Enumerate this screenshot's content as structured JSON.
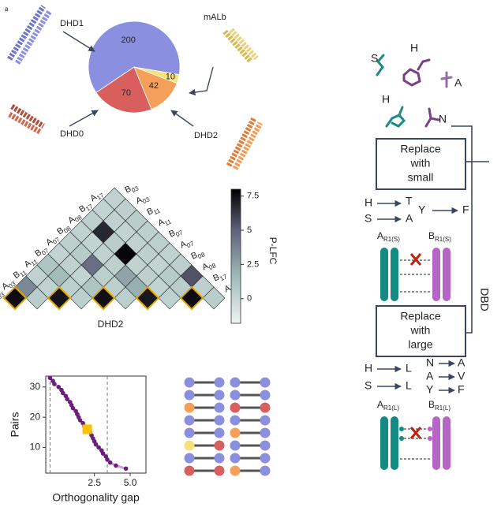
{
  "panel_label": "a",
  "pie": {
    "type": "pie",
    "names": [
      "DHD1",
      "mALb",
      "DHD2",
      "DHD0"
    ],
    "values": [
      200,
      10,
      42,
      70
    ],
    "colors": [
      "#8b8fe0",
      "#f7e27a",
      "#f4a05a",
      "#d95f5f"
    ]
  },
  "heatmap": {
    "type": "heatmap",
    "labels": [
      {
        "base": "B",
        "sub": "03"
      },
      {
        "base": "A",
        "sub": "03"
      },
      {
        "base": "B",
        "sub": "11"
      },
      {
        "base": "A",
        "sub": "11"
      },
      {
        "base": "B",
        "sub": "07"
      },
      {
        "base": "A",
        "sub": "07"
      },
      {
        "base": "B",
        "sub": "08"
      },
      {
        "base": "A",
        "sub": "08"
      },
      {
        "base": "B",
        "sub": "17"
      },
      {
        "base": "A",
        "sub": "17"
      }
    ],
    "rows": [
      [
        7.6,
        0.5,
        7.4,
        0.3,
        7.5,
        0.4,
        7.3,
        0.2,
        7.6,
        0.5
      ],
      [
        3.5,
        0.2,
        0.4,
        1.0,
        0.3,
        2.0,
        0.1,
        0.5,
        0.3
      ],
      [
        0.2,
        1.5,
        0.1,
        0.4,
        2.5,
        0.3,
        0.6,
        5.5
      ],
      [
        1.0,
        0.2,
        4.5,
        0.3,
        0.2,
        0.1,
        0.4
      ],
      [
        0.1,
        0.6,
        0.2,
        7.8,
        0.3,
        0.2
      ],
      [
        0.3,
        0.1,
        0.5,
        0.2,
        0.4
      ],
      [
        0.2,
        6.8,
        0.1,
        0.3
      ],
      [
        0.4,
        0.2,
        0.5
      ],
      [
        0.1,
        0.3
      ],
      [
        0.2
      ]
    ],
    "highlighted_cells": [
      0,
      2,
      4,
      6,
      8
    ],
    "highlight_color": "#e0a800",
    "vlim": [
      -1.8,
      8
    ],
    "ticks": [
      0,
      2.5,
      5,
      7.5
    ],
    "colorbar_label": "P-LFC",
    "xlabel": "DHD2"
  },
  "scatter": {
    "type": "line",
    "x": [
      -0.6,
      -0.4,
      -0.3,
      0,
      0.2,
      0.3,
      0.5,
      0.6,
      0.8,
      0.9,
      1.0,
      1.2,
      1.3,
      1.4,
      1.5,
      1.7,
      1.8,
      2.0,
      2.2,
      2.3,
      2.4,
      2.5,
      2.6,
      2.8,
      3.0,
      3.1,
      3.3,
      3.4,
      3.6,
      4.0,
      4.7
    ],
    "y": [
      33,
      32,
      31,
      30,
      29,
      28,
      27,
      26,
      25,
      24,
      23,
      22,
      21,
      20,
      19,
      18,
      17,
      16,
      15,
      14,
      13,
      12,
      11,
      10,
      9,
      8,
      7,
      6,
      5,
      4,
      3
    ],
    "color": "#6b1f7a",
    "line_color": "#c9a3cf",
    "highlight": {
      "x": 2.0,
      "y": 16,
      "color": "#ffc000"
    },
    "vlines": [
      -0.6,
      3.4
    ],
    "xlim": [
      -0.9,
      6.1
    ],
    "ylim": [
      1.5,
      33.6
    ],
    "xticks": [
      2.5,
      {
        "value": 5,
        "label": "5.0"
      }
    ],
    "yticks": [
      10,
      20,
      30
    ],
    "xlabel": "Orthogonality gap",
    "ylabel": "Pairs"
  },
  "pair_grid": [
    [
      "#8b8fe0",
      "#8b8fe0",
      "#8b8fe0",
      "#8b8fe0"
    ],
    [
      "#8b8fe0",
      "#8b8fe0",
      "#8b8fe0",
      "#8b8fe0"
    ],
    [
      "#f4a05a",
      "#8b8fe0",
      "#d95f5f",
      "#d95f5f"
    ],
    [
      "#8b8fe0",
      "#8b8fe0",
      "#8b8fe0",
      "#8b8fe0"
    ],
    [
      "#8b8fe0",
      "#8b8fe0",
      "#f4a05a",
      "#8b8fe0"
    ],
    [
      "#f7e27a",
      "#d95f5f",
      "#8b8fe0",
      "#8b8fe0"
    ],
    [
      "#8b8fe0",
      "#8b8fe0",
      "#8b8fe0",
      "#8b8fe0"
    ],
    [
      "#d95f5f",
      "#d95f5f",
      "#f4a05a",
      "#8b8fe0"
    ]
  ],
  "design": {
    "residues": [
      "S",
      "H",
      "A",
      "H",
      "N"
    ],
    "boxes": [
      [
        "Replace",
        "with",
        "small"
      ],
      [
        "Replace",
        "with",
        "large"
      ]
    ],
    "mutations_small": [
      [
        "H",
        "T"
      ],
      [
        "S",
        "A"
      ],
      [
        "Y",
        "F"
      ]
    ],
    "mutations_large": [
      [
        "H",
        "L"
      ],
      [
        "S",
        "L"
      ],
      [
        "N",
        "A"
      ],
      [
        "A",
        "V"
      ],
      [
        "Y",
        "F"
      ]
    ],
    "helix_labels": [
      {
        "base": "A",
        "sub": "R1(S)"
      },
      {
        "base": "B",
        "sub": "R1(S)"
      },
      {
        "base": "A",
        "sub": "R1(L)"
      },
      {
        "base": "B",
        "sub": "R1(L)"
      }
    ],
    "label": "DBD"
  }
}
